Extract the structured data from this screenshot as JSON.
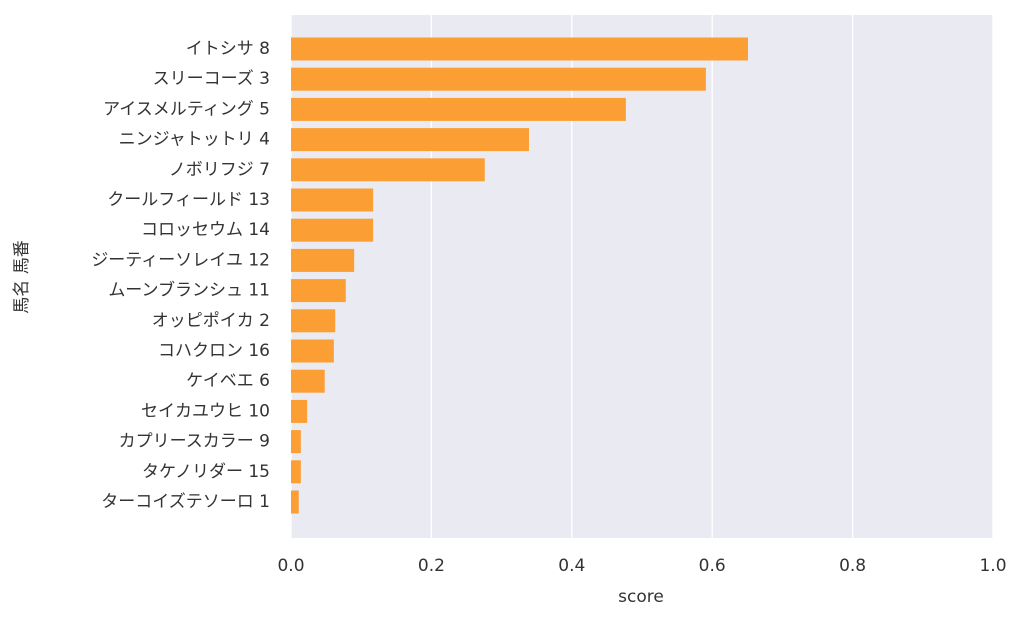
{
  "chart_data": {
    "type": "barh",
    "xlabel": "score",
    "ylabel": "馬名 馬番",
    "categories": [
      "イトシサ 8",
      "スリーコーズ 3",
      "アイスメルティング 5",
      "ニンジャトットリ 4",
      "ノボリフジ 7",
      "クールフィールド 13",
      "コロッセウム 14",
      "ジーティーソレイユ 12",
      "ムーンブランシュ 11",
      "オッピポイカ 2",
      "コハクロン 16",
      "ケイベエ 6",
      "セイカユウヒ 10",
      "カプリースカラー 9",
      "タケノリダー 15",
      "ターコイズテソーロ 1"
    ],
    "values": [
      0.651,
      0.591,
      0.477,
      0.339,
      0.276,
      0.117,
      0.117,
      0.09,
      0.078,
      0.063,
      0.061,
      0.048,
      0.023,
      0.014,
      0.014,
      0.011
    ],
    "color": "#fb9e34",
    "xlim": [
      0,
      1
    ],
    "xticks": [
      {
        "value": 0,
        "label": "0.0"
      },
      {
        "value": 0.2,
        "label": "0.2"
      },
      {
        "value": 0.4,
        "label": "0.4"
      },
      {
        "value": 0.6,
        "label": "0.6"
      },
      {
        "value": 0.8,
        "label": "0.8"
      },
      {
        "value": 1,
        "label": "1.0"
      }
    ],
    "grid": true
  }
}
